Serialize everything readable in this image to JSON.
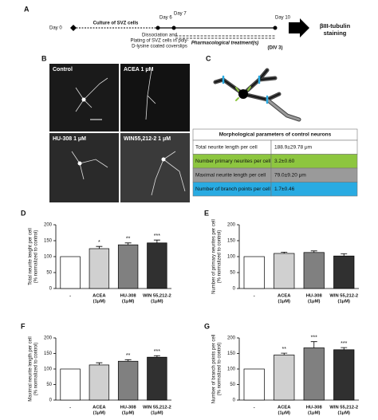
{
  "timeline": {
    "panel_label": "A",
    "day_labels": [
      "Day 0",
      "Day 6",
      "Day 7",
      "Day 10"
    ],
    "culture": "Culture of SVZ cells",
    "dissociation": [
      "Dissociation and",
      "Plating of SVZ cells in poly-",
      "D-lysine coated coverslips"
    ],
    "treatment": "Pharmacological treatment(s)",
    "div": "(DIV 3)",
    "staining": [
      "βIII-tubulin",
      "staining"
    ]
  },
  "images": {
    "panel_label": "B",
    "labels": [
      "Control",
      "ACEA 1 μM",
      "HU-308 1 μM",
      "WIN55,212-2 1 μM"
    ]
  },
  "diagram": {
    "panel_label": "C"
  },
  "table": {
    "title": "Morphological parameters of control neurons",
    "rows": [
      [
        "Total neurite length per cell",
        "188.9±29.78 μm"
      ],
      [
        "Number primary neurites per cell",
        "3.2±0.60"
      ],
      [
        "Maximal neurite length per cell",
        "79.0±9.20 μm"
      ],
      [
        "Number of branch points per cell",
        "1.7±0.46"
      ]
    ],
    "row_colors": [
      "#ffffff",
      "#8dc63f",
      "#9a9a9a",
      "#29abe2"
    ]
  },
  "chart_data": [
    {
      "type": "bar",
      "panel_label": "D",
      "y_label": [
        "Total neurite lenght per cell",
        "(% normalized to control)"
      ],
      "categories": [
        [
          "-"
        ],
        [
          "ACEA",
          "(1μM)"
        ],
        [
          "HU-308",
          "(1μM)"
        ],
        [
          "WIN 55,212-2",
          "(1μM)"
        ]
      ],
      "values": [
        100,
        125,
        137,
        143
      ],
      "errors": [
        null,
        7,
        6,
        9
      ],
      "significance": [
        null,
        "*",
        "**",
        "***"
      ],
      "colors": [
        "#ffffff",
        "#d0d0d0",
        "#808080",
        "#303030"
      ],
      "ylim": [
        0,
        200
      ],
      "yticks": [
        0,
        50,
        100,
        150,
        200
      ]
    },
    {
      "type": "bar",
      "panel_label": "E",
      "y_label": [
        "Number of primary neurites per cell",
        "(% normalized to control)"
      ],
      "categories": [
        [
          "-"
        ],
        [
          "ACEA",
          "(1μM)"
        ],
        [
          "HU-308",
          "(1μM)"
        ],
        [
          "WIN 55,212-2",
          "(1μM)"
        ]
      ],
      "values": [
        100,
        110,
        113,
        102
      ],
      "errors": [
        null,
        4,
        5,
        7
      ],
      "significance": [
        null,
        null,
        null,
        null
      ],
      "colors": [
        "#ffffff",
        "#d0d0d0",
        "#808080",
        "#303030"
      ],
      "ylim": [
        0,
        200
      ],
      "yticks": [
        0,
        50,
        100,
        150,
        200
      ]
    },
    {
      "type": "bar",
      "panel_label": "F",
      "y_label": [
        "Maximal neurite length per cell",
        "(% normalized to control)"
      ],
      "categories": [
        [
          "-"
        ],
        [
          "ACEA",
          "(1μM)"
        ],
        [
          "HU-308",
          "(1μM)"
        ],
        [
          "WIN 55,212-2",
          "(1μM)"
        ]
      ],
      "values": [
        100,
        113,
        125,
        138
      ],
      "errors": [
        null,
        7,
        5,
        5
      ],
      "significance": [
        null,
        null,
        "**",
        "***"
      ],
      "colors": [
        "#ffffff",
        "#d0d0d0",
        "#808080",
        "#303030"
      ],
      "ylim": [
        0,
        200
      ],
      "yticks": [
        0,
        50,
        100,
        150,
        200
      ]
    },
    {
      "type": "bar",
      "panel_label": "G",
      "y_label": [
        "Number of branch points per cell",
        "(% normalized to control)"
      ],
      "categories": [
        [
          "-"
        ],
        [
          "ACEA",
          "(1μM)"
        ],
        [
          "HU-308",
          "(1μM)"
        ],
        [
          "WIN 55,212-2",
          "(1μM)"
        ]
      ],
      "values": [
        100,
        145,
        168,
        162
      ],
      "errors": [
        null,
        6,
        20,
        7
      ],
      "significance": [
        null,
        "**",
        "***",
        "***"
      ],
      "colors": [
        "#ffffff",
        "#d0d0d0",
        "#808080",
        "#303030"
      ],
      "ylim": [
        0,
        200
      ],
      "yticks": [
        0,
        50,
        100,
        150,
        200
      ]
    }
  ]
}
